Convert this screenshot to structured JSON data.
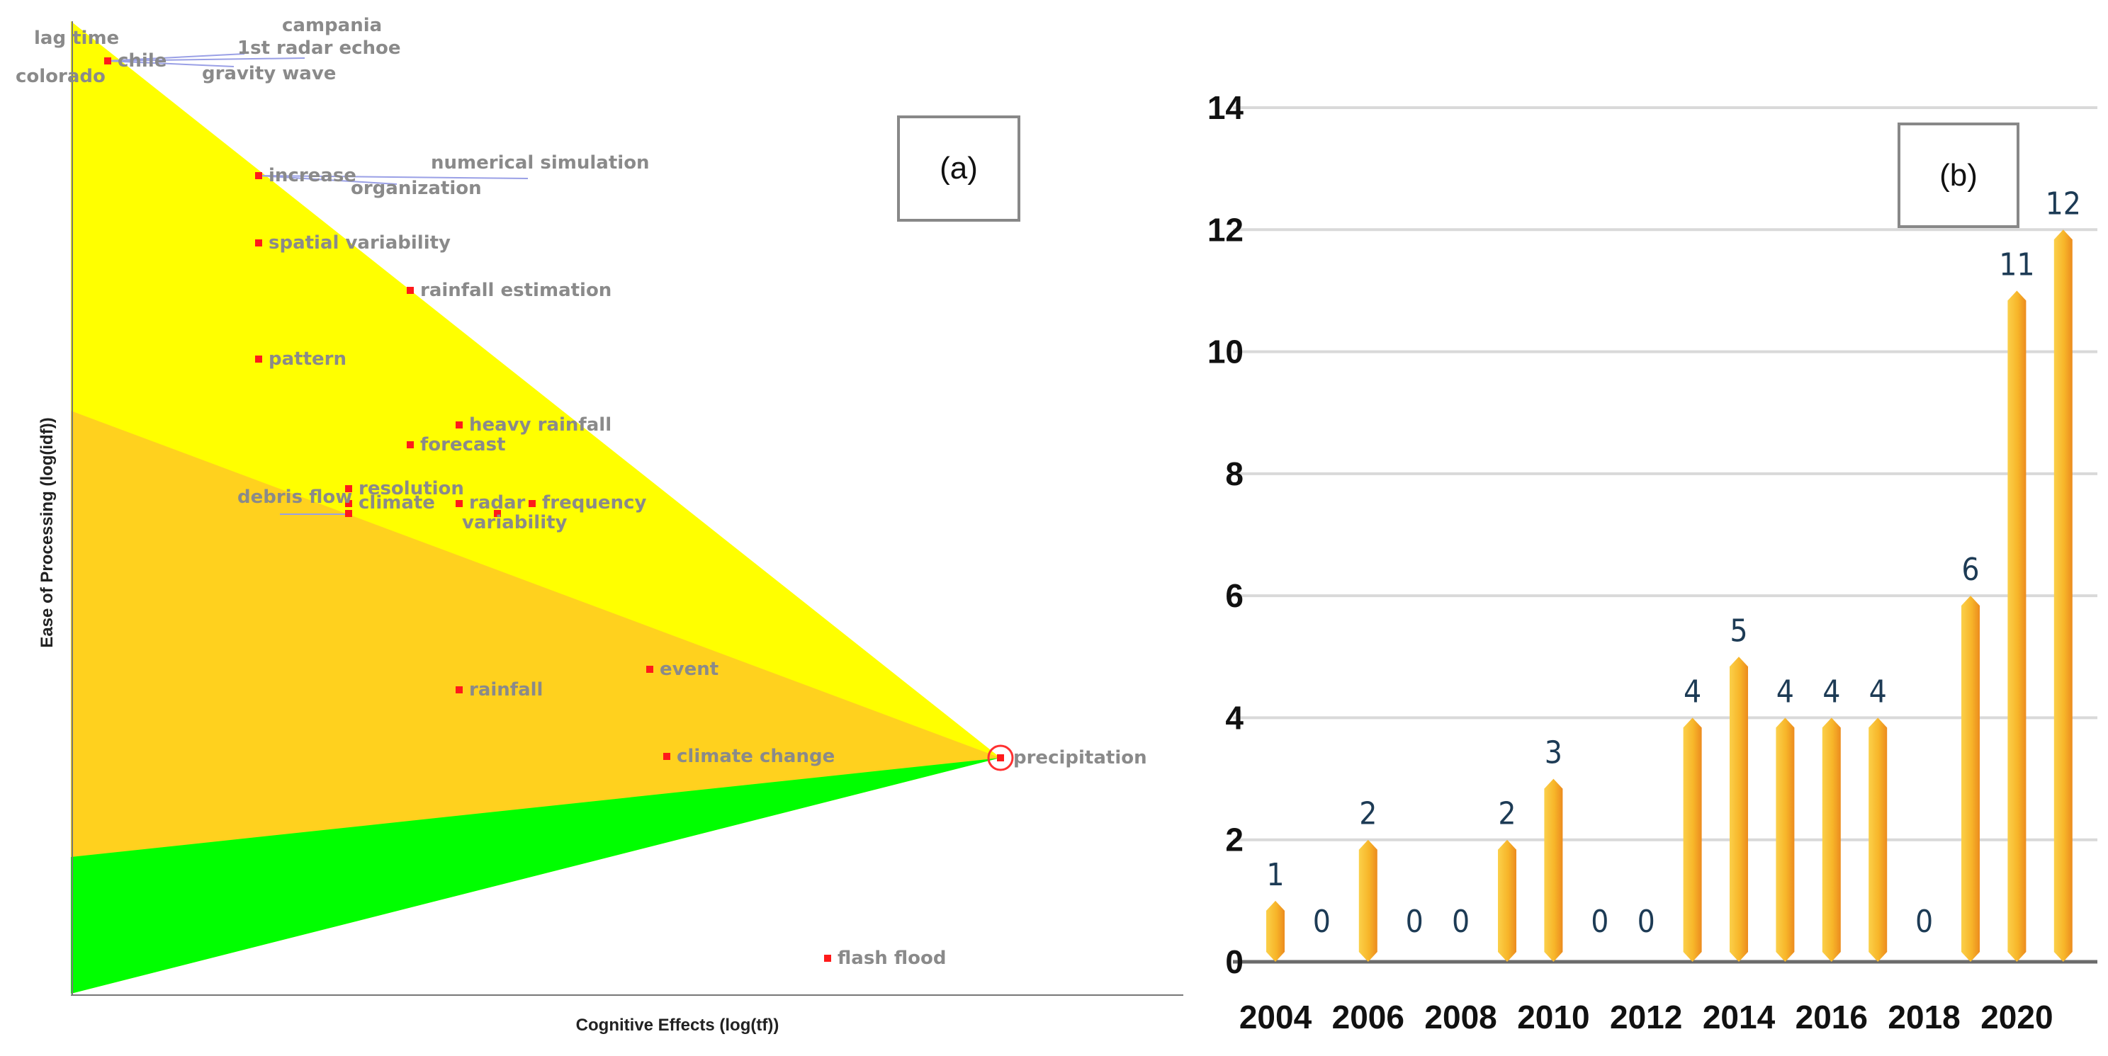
{
  "panel_a": {
    "label": "(a)",
    "chart_data": {
      "type": "scatter",
      "xlabel": "Cognitive Effects (log(tf))",
      "ylabel": "Ease of Processing (log(idf))",
      "grid": false,
      "points": [
        {
          "label": "lag time"
        },
        {
          "label": "campania"
        },
        {
          "label": "1st radar echoe"
        },
        {
          "label": "chile"
        },
        {
          "label": "colorado"
        },
        {
          "label": "gravity wave"
        },
        {
          "label": "increase"
        },
        {
          "label": "numerical simulation"
        },
        {
          "label": "organization"
        },
        {
          "label": "spatial variability"
        },
        {
          "label": "rainfall estimation"
        },
        {
          "label": "pattern"
        },
        {
          "label": "heavy rainfall"
        },
        {
          "label": "forecast"
        },
        {
          "label": "resolution"
        },
        {
          "label": "debris flow"
        },
        {
          "label": "climate"
        },
        {
          "label": "radar"
        },
        {
          "label": "frequency"
        },
        {
          "label": "variability"
        },
        {
          "label": "event"
        },
        {
          "label": "rainfall"
        },
        {
          "label": "climate change"
        },
        {
          "label": "precipitation"
        },
        {
          "label": "flash flood"
        }
      ]
    }
  },
  "panel_b": {
    "label": "(b)",
    "chart_data": {
      "type": "bar",
      "categories": [
        "2004",
        "2005",
        "2006",
        "2007",
        "2008",
        "2009",
        "2010",
        "2011",
        "2012",
        "2013",
        "2014",
        "2015",
        "2016",
        "2017",
        "2018",
        "2019",
        "2020",
        "2021"
      ],
      "values": [
        1,
        0,
        2,
        0,
        0,
        2,
        3,
        0,
        0,
        4,
        5,
        4,
        4,
        4,
        0,
        6,
        11,
        12
      ],
      "x_tick_labels": [
        "2004",
        "2006",
        "2008",
        "2010",
        "2012",
        "2014",
        "2016",
        "2018",
        "2020"
      ],
      "y_ticks": [
        0,
        2,
        4,
        6,
        8,
        10,
        12,
        14
      ],
      "ylim": [
        0,
        14
      ],
      "grid": true,
      "title": "",
      "xlabel": "",
      "ylabel": "",
      "bar_color": "#f7b529"
    }
  }
}
